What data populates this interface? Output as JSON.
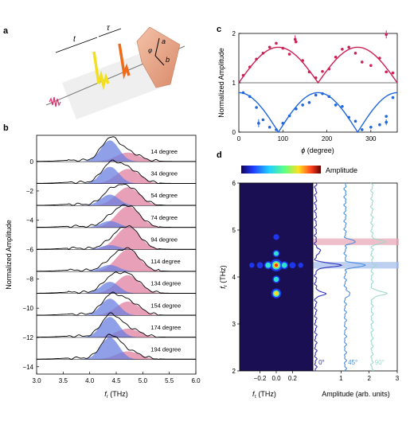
{
  "panels": {
    "a": {
      "label": "a",
      "t_label": "t",
      "tau_label": "τ",
      "axis_a": "a",
      "axis_b": "b",
      "angle_label": "φ"
    },
    "b": {
      "label": "b"
    },
    "c": {
      "label": "c"
    },
    "d": {
      "label": "d",
      "colorbar_label": "Amplitude"
    }
  },
  "chart_data": [
    {
      "id": "b",
      "type": "area",
      "xlabel": "f_r (THz)",
      "ylabel": "Normalized Amplitude",
      "xlim": [
        3.0,
        6.0
      ],
      "ylim": [
        -14.5,
        1.8
      ],
      "xticks": [
        3.0,
        3.5,
        4.0,
        4.5,
        5.0,
        5.5,
        6.0
      ],
      "yticks": [
        0,
        -2,
        -4,
        -6,
        -8,
        -10,
        -12,
        -14
      ],
      "grid": false,
      "colors": {
        "blue_peak": "#6a7fe0",
        "pink_peak": "#e07fa0",
        "overlap": "#7a4a8a",
        "total": "#000000"
      },
      "blue_center_thz": 4.38,
      "pink_center_thz": 4.72,
      "traces": [
        {
          "label": "14 degree",
          "angle": 14,
          "offset": 0,
          "blue_amp": 1.45,
          "pink_amp": 0.62
        },
        {
          "label": "34 degree",
          "angle": 34,
          "offset": -1.5,
          "blue_amp": 1.15,
          "pink_amp": 1.0
        },
        {
          "label": "54 degree",
          "angle": 54,
          "offset": -3.0,
          "blue_amp": 0.75,
          "pink_amp": 1.25
        },
        {
          "label": "74 degree",
          "angle": 74,
          "offset": -4.5,
          "blue_amp": 0.45,
          "pink_amp": 1.45
        },
        {
          "label": "94 degree",
          "angle": 94,
          "offset": -6.0,
          "blue_amp": 0.3,
          "pink_amp": 1.55
        },
        {
          "label": "114 degree",
          "angle": 114,
          "offset": -7.5,
          "blue_amp": 0.45,
          "pink_amp": 1.5
        },
        {
          "label": "134 degree",
          "angle": 134,
          "offset": -9.0,
          "blue_amp": 0.8,
          "pink_amp": 1.25
        },
        {
          "label": "154 degree",
          "angle": 154,
          "offset": -10.5,
          "blue_amp": 1.15,
          "pink_amp": 0.95
        },
        {
          "label": "174 degree",
          "angle": 174,
          "offset": -12.0,
          "blue_amp": 1.4,
          "pink_amp": 0.6
        },
        {
          "label": "194 degree",
          "angle": 194,
          "offset": -13.5,
          "blue_amp": 1.5,
          "pink_amp": 0.55
        }
      ]
    },
    {
      "id": "c",
      "type": "scatter",
      "xlabel": "ϕ (degree)",
      "ylabel": "Normalized Amplitude",
      "xlim": [
        0,
        360
      ],
      "ylim": [
        0,
        2
      ],
      "xticks": [
        0,
        100,
        200,
        300
      ],
      "yticks": [
        0,
        1,
        2
      ],
      "grid": false,
      "series": [
        {
          "color": "#cc2255",
          "points": [
            [
              10,
              1.15
            ],
            [
              25,
              1.32
            ],
            [
              40,
              1.48
            ],
            [
              55,
              1.6
            ],
            [
              70,
              1.72
            ],
            [
              85,
              1.8
            ],
            [
              100,
              1.7
            ],
            [
              115,
              1.58
            ],
            [
              130,
              1.83
            ],
            [
              145,
              1.45
            ],
            [
              160,
              1.22
            ],
            [
              175,
              1.1
            ],
            [
              190,
              1.23
            ],
            [
              205,
              1.28
            ],
            [
              220,
              1.52
            ],
            [
              235,
              1.68
            ],
            [
              250,
              1.72
            ],
            [
              265,
              1.6
            ],
            [
              280,
              1.42
            ],
            [
              300,
              1.35
            ],
            [
              320,
              1.5
            ],
            [
              335,
              1.22
            ],
            [
              350,
              1.2
            ]
          ],
          "error_points": [
            [
              128,
              1.88,
              0.08
            ],
            [
              335,
              1.98,
              0.08
            ]
          ]
        },
        {
          "color": "#2266dd",
          "points": [
            [
              10,
              0.8
            ],
            [
              25,
              0.72
            ],
            [
              40,
              0.5
            ],
            [
              55,
              0.25
            ],
            [
              70,
              0.1
            ],
            [
              85,
              0.05
            ],
            [
              100,
              0.18
            ],
            [
              115,
              0.33
            ],
            [
              130,
              0.47
            ],
            [
              145,
              0.55
            ],
            [
              160,
              0.6
            ],
            [
              175,
              0.75
            ],
            [
              190,
              0.78
            ],
            [
              205,
              0.72
            ],
            [
              220,
              0.55
            ],
            [
              235,
              0.52
            ],
            [
              250,
              0.3
            ],
            [
              265,
              0.22
            ],
            [
              280,
              0.05
            ],
            [
              300,
              0.1
            ],
            [
              320,
              0.15
            ],
            [
              335,
              0.32
            ],
            [
              350,
              0.7
            ]
          ],
          "error_points": [
            [
              45,
              0.18,
              0.08
            ],
            [
              335,
              0.2,
              0.06
            ]
          ]
        }
      ]
    },
    {
      "id": "d",
      "type": "heatmap",
      "xlabel": "f_τ (THz)",
      "ylabel": "f_r (THz)",
      "xlim": [
        -0.45,
        0.45
      ],
      "ylim": [
        2,
        6
      ],
      "xticks": [
        -0.2,
        0.0,
        0.2
      ],
      "yticks": [
        2,
        3,
        4,
        5,
        6
      ],
      "spots": [
        {
          "x": 0.0,
          "y": 4.25,
          "amp": 1.0
        },
        {
          "x": 0.0,
          "y": 3.65,
          "amp": 0.7
        },
        {
          "x": 0.0,
          "y": 4.5,
          "amp": 0.35
        },
        {
          "x": 0.0,
          "y": 3.95,
          "amp": 0.4
        },
        {
          "x": 0.0,
          "y": 4.85,
          "amp": 0.2
        },
        {
          "x": -0.1,
          "y": 4.25,
          "amp": 0.45
        },
        {
          "x": 0.1,
          "y": 4.25,
          "amp": 0.45
        },
        {
          "x": -0.2,
          "y": 4.25,
          "amp": 0.25
        },
        {
          "x": 0.2,
          "y": 4.25,
          "amp": 0.25
        },
        {
          "x": -0.3,
          "y": 4.25,
          "amp": 0.12
        },
        {
          "x": 0.3,
          "y": 4.25,
          "amp": 0.12
        }
      ]
    },
    {
      "id": "d_lineouts",
      "type": "line",
      "xlabel": "Amplitude (arb. units)",
      "ylabel": "",
      "xlim": [
        0,
        3
      ],
      "ylim": [
        2,
        6
      ],
      "xticks": [
        1,
        2,
        3
      ],
      "bands": [
        {
          "y": [
            4.68,
            4.82
          ],
          "color": "#e8a8b8"
        },
        {
          "y": [
            4.18,
            4.32
          ],
          "color": "#a8c0ec"
        }
      ],
      "series": [
        {
          "name": "0°",
          "color": "#3333bb",
          "baseline": 0.1,
          "peaks": [
            [
              4.25,
              0.9
            ],
            [
              3.65,
              0.35
            ],
            [
              4.55,
              0.2
            ]
          ]
        },
        {
          "name": "45°",
          "color": "#4c8fe0",
          "baseline": 1.15,
          "peaks": [
            [
              4.25,
              0.7
            ],
            [
              4.75,
              0.35
            ],
            [
              3.65,
              0.2
            ]
          ]
        },
        {
          "name": "90°",
          "color": "#9fd8cc",
          "baseline": 2.1,
          "peaks": [
            [
              3.65,
              0.55
            ],
            [
              4.75,
              0.45
            ],
            [
              4.25,
              0.1
            ]
          ]
        }
      ]
    }
  ]
}
